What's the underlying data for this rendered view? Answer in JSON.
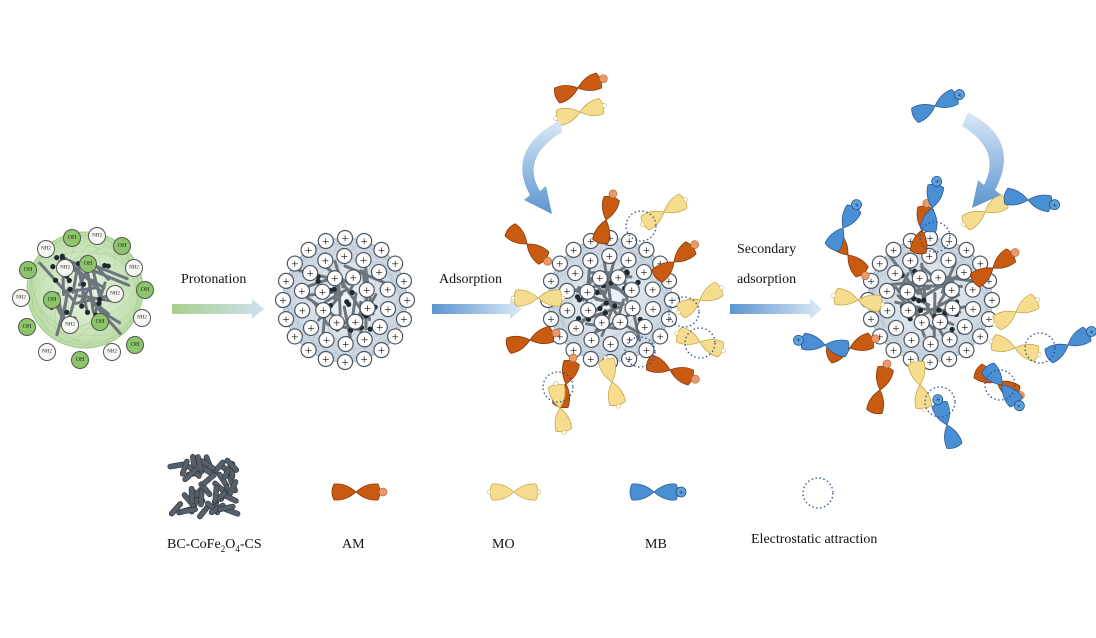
{
  "steps": {
    "protonation": "Protonation",
    "adsorption": "Adsorption",
    "secondary_line1": "Secondary",
    "secondary_line2": "adsorption"
  },
  "groups": {
    "hydroxyl": "OH",
    "amine": "NH2",
    "positive": "+"
  },
  "legend": {
    "material": {
      "prefix": "BC-CoFe",
      "sub1": "2",
      "mid": "O",
      "sub2": "4",
      "suffix": "-CS"
    },
    "am": "AM",
    "mo": "MO",
    "mb": "MB",
    "attraction": "Electrostatic attraction"
  },
  "colors": {
    "AM": "#c85a12",
    "MO": "#f6dc8e",
    "MB": "#4a8fd4",
    "hydroxyl": "#8cc56a",
    "core": "#4f5a60",
    "arrow": "#5b95cf"
  }
}
